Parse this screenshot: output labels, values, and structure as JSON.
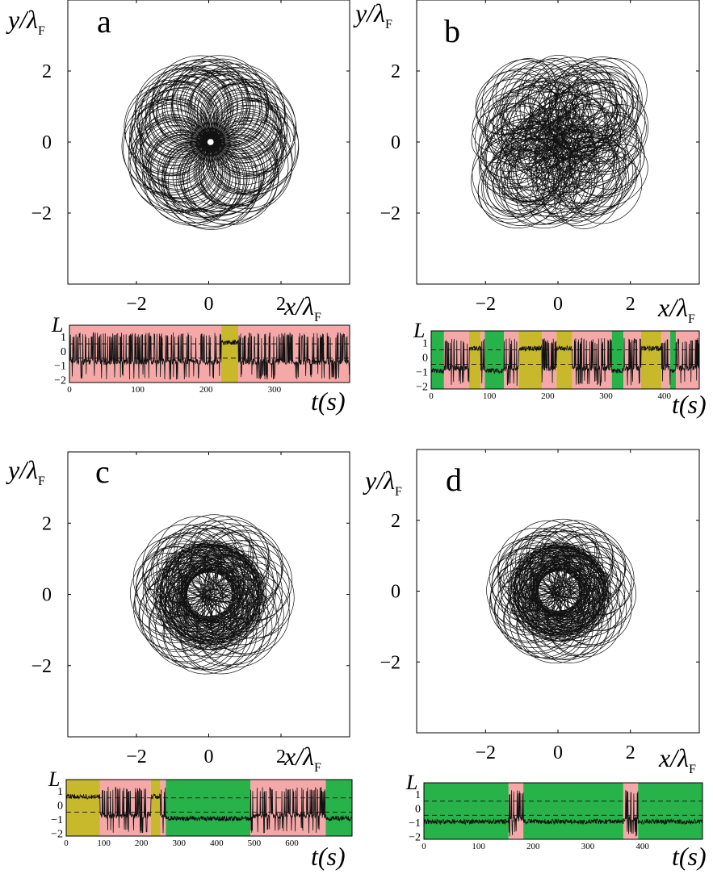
{
  "chart_data": [
    {
      "panel": "a",
      "type": "line",
      "subtype": "trajectory",
      "xlabel": "x/λ",
      "xlabel_sub": "F",
      "ylabel": "y/λ",
      "ylabel_sub": "F",
      "xlim": [
        -3.9,
        3.9
      ],
      "ylim": [
        -4.0,
        4.0
      ],
      "xticks": [
        -2,
        0,
        2
      ],
      "yticks": [
        -2,
        0,
        2
      ],
      "xtick_labels": [
        "−2",
        "0",
        "2"
      ],
      "ytick_labels": [
        "−2",
        "0",
        "2"
      ],
      "grid": false,
      "orbit": {
        "style": "rosette",
        "radius": 2.1,
        "lobes": 9,
        "loops": 140,
        "jitter": 0.12
      },
      "timeseries": {
        "ylabel": "L",
        "xlabel": "t(s)",
        "xlim": [
          0,
          410
        ],
        "ylim": [
          -2.2,
          1.8
        ],
        "xticks": [
          0,
          100,
          200,
          300
        ],
        "yticks": [
          1,
          0,
          -1,
          -2
        ],
        "dashed_levels": [
          0.5,
          -0.5
        ],
        "regimes": [
          {
            "start": 0,
            "end": 222,
            "state": "pink"
          },
          {
            "start": 222,
            "end": 247,
            "state": "yellow"
          },
          {
            "start": 247,
            "end": 410,
            "state": "pink"
          }
        ]
      }
    },
    {
      "panel": "b",
      "type": "line",
      "subtype": "trajectory",
      "xlabel": "x/λ",
      "xlabel_sub": "F",
      "ylabel": "y/λ",
      "ylabel_sub": "F",
      "xlim": [
        -3.9,
        3.9
      ],
      "ylim": [
        -4.0,
        4.0
      ],
      "xticks": [
        -2,
        0,
        2
      ],
      "yticks": [
        -2,
        0,
        2
      ],
      "xtick_labels": [
        "−2",
        "0",
        "2"
      ],
      "ytick_labels": [
        "−2",
        "0",
        "2"
      ],
      "grid": false,
      "orbit": {
        "style": "chaotic",
        "radius": 2.4,
        "lobes": 0,
        "loops": 170,
        "jitter": 0.35
      },
      "timeseries": {
        "ylabel": "L",
        "xlabel": "t(s)",
        "xlim": [
          0,
          460
        ],
        "ylim": [
          -2.2,
          1.8
        ],
        "xticks": [
          0,
          100,
          200,
          300,
          400
        ],
        "yticks": [
          1,
          0,
          -1,
          -2
        ],
        "dashed_levels": [
          0.5,
          -0.5
        ],
        "regimes": [
          {
            "start": 0,
            "end": 22,
            "state": "green"
          },
          {
            "start": 22,
            "end": 65,
            "state": "pink"
          },
          {
            "start": 65,
            "end": 85,
            "state": "yellow"
          },
          {
            "start": 85,
            "end": 92,
            "state": "pink"
          },
          {
            "start": 92,
            "end": 125,
            "state": "green"
          },
          {
            "start": 125,
            "end": 150,
            "state": "pink"
          },
          {
            "start": 150,
            "end": 190,
            "state": "yellow"
          },
          {
            "start": 190,
            "end": 215,
            "state": "pink"
          },
          {
            "start": 215,
            "end": 242,
            "state": "yellow"
          },
          {
            "start": 242,
            "end": 310,
            "state": "pink"
          },
          {
            "start": 310,
            "end": 330,
            "state": "green"
          },
          {
            "start": 330,
            "end": 360,
            "state": "pink"
          },
          {
            "start": 360,
            "end": 395,
            "state": "yellow"
          },
          {
            "start": 395,
            "end": 410,
            "state": "pink"
          },
          {
            "start": 410,
            "end": 420,
            "state": "green"
          },
          {
            "start": 420,
            "end": 460,
            "state": "pink"
          }
        ]
      }
    },
    {
      "panel": "c",
      "type": "line",
      "subtype": "trajectory",
      "xlabel": "x/λ",
      "xlabel_sub": "F",
      "ylabel": "y/λ",
      "ylabel_sub": "F",
      "xlim": [
        -3.9,
        3.9
      ],
      "ylim": [
        -4.0,
        4.0
      ],
      "xticks": [
        -2,
        0,
        2
      ],
      "yticks": [
        -2,
        0,
        2
      ],
      "xtick_labels": [
        "−2",
        "0",
        "2"
      ],
      "ytick_labels": [
        "−2",
        "0",
        "2"
      ],
      "grid": false,
      "orbit": {
        "style": "dense-core",
        "radius": 2.2,
        "lobes": 7,
        "loops": 150,
        "jitter": 0.25
      },
      "timeseries": {
        "ylabel": "L",
        "xlabel": "t(s)",
        "xlim": [
          0,
          760
        ],
        "ylim": [
          -2.2,
          1.8
        ],
        "xticks": [
          0,
          100,
          200,
          300,
          400,
          500,
          600
        ],
        "yticks": [
          1,
          0,
          -1,
          -2
        ],
        "dashed_levels": [
          0.5,
          -0.5
        ],
        "regimes": [
          {
            "start": 0,
            "end": 90,
            "state": "yellow"
          },
          {
            "start": 90,
            "end": 225,
            "state": "pink"
          },
          {
            "start": 225,
            "end": 250,
            "state": "yellow"
          },
          {
            "start": 250,
            "end": 265,
            "state": "pink"
          },
          {
            "start": 265,
            "end": 490,
            "state": "green"
          },
          {
            "start": 490,
            "end": 690,
            "state": "pink"
          },
          {
            "start": 690,
            "end": 760,
            "state": "green"
          }
        ]
      }
    },
    {
      "panel": "d",
      "type": "line",
      "subtype": "trajectory",
      "xlabel": "x/λ",
      "xlabel_sub": "F",
      "ylabel": "y/λ",
      "ylabel_sub": "F",
      "xlim": [
        -3.9,
        3.9
      ],
      "ylim": [
        -4.0,
        4.0
      ],
      "xticks": [
        -2,
        0,
        2
      ],
      "yticks": [
        -2,
        0,
        2
      ],
      "xtick_labels": [
        "−2",
        "0",
        "2"
      ],
      "ytick_labels": [
        "−2",
        "0",
        "2"
      ],
      "grid": false,
      "orbit": {
        "style": "dense-core",
        "radius": 2.0,
        "lobes": 8,
        "loops": 150,
        "jitter": 0.2
      },
      "timeseries": {
        "ylabel": "L",
        "xlabel": "t(s)",
        "xlim": [
          0,
          510
        ],
        "ylim": [
          -2.2,
          1.8
        ],
        "xticks": [
          0,
          100,
          200,
          300,
          400
        ],
        "yticks": [
          1,
          0,
          -1,
          -2
        ],
        "dashed_levels": [
          0.5,
          -0.5
        ],
        "regimes": [
          {
            "start": 0,
            "end": 155,
            "state": "green"
          },
          {
            "start": 155,
            "end": 182,
            "state": "pink"
          },
          {
            "start": 182,
            "end": 365,
            "state": "green"
          },
          {
            "start": 365,
            "end": 392,
            "state": "pink"
          },
          {
            "start": 392,
            "end": 510,
            "state": "green"
          }
        ]
      }
    }
  ],
  "colors": {
    "pink": "#f4a9a8",
    "yellow": "#c8b82c",
    "green": "#27b24a",
    "trace": "#111111",
    "axis": "#000000"
  }
}
